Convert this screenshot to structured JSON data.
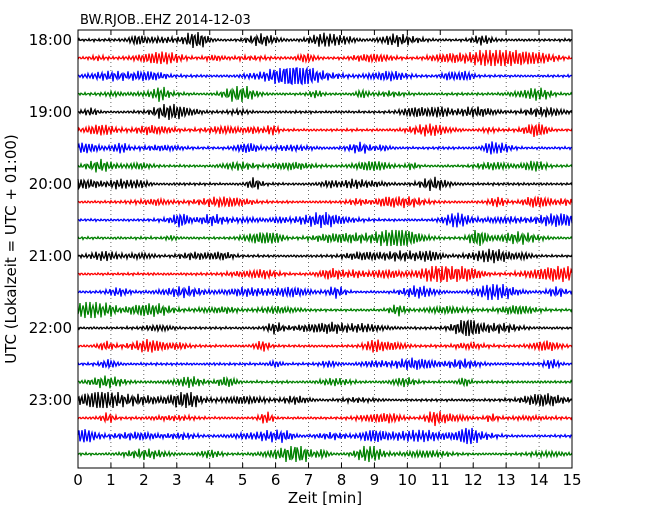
{
  "chart_data": {
    "type": "line",
    "title": "BW.RJOB..EHZ 2014-12-03",
    "xlabel": "Zeit  [min]",
    "ylabel": "UTC (Lokalzeit = UTC + 01:00)",
    "xlim": [
      0,
      15
    ],
    "x_ticks": [
      "0",
      "1",
      "2",
      "3",
      "4",
      "5",
      "6",
      "7",
      "8",
      "9",
      "10",
      "11",
      "12",
      "13",
      "14",
      "15"
    ],
    "y_tick_labels": [
      "18:00",
      "19:00",
      "20:00",
      "21:00",
      "22:00",
      "23:00"
    ],
    "traces_per_hour": 4,
    "trace_count": 24,
    "trace_minutes": 15,
    "colors": [
      "#000000",
      "#ff0000",
      "#0000ff",
      "#008000"
    ],
    "grid": "vertical dotted"
  }
}
